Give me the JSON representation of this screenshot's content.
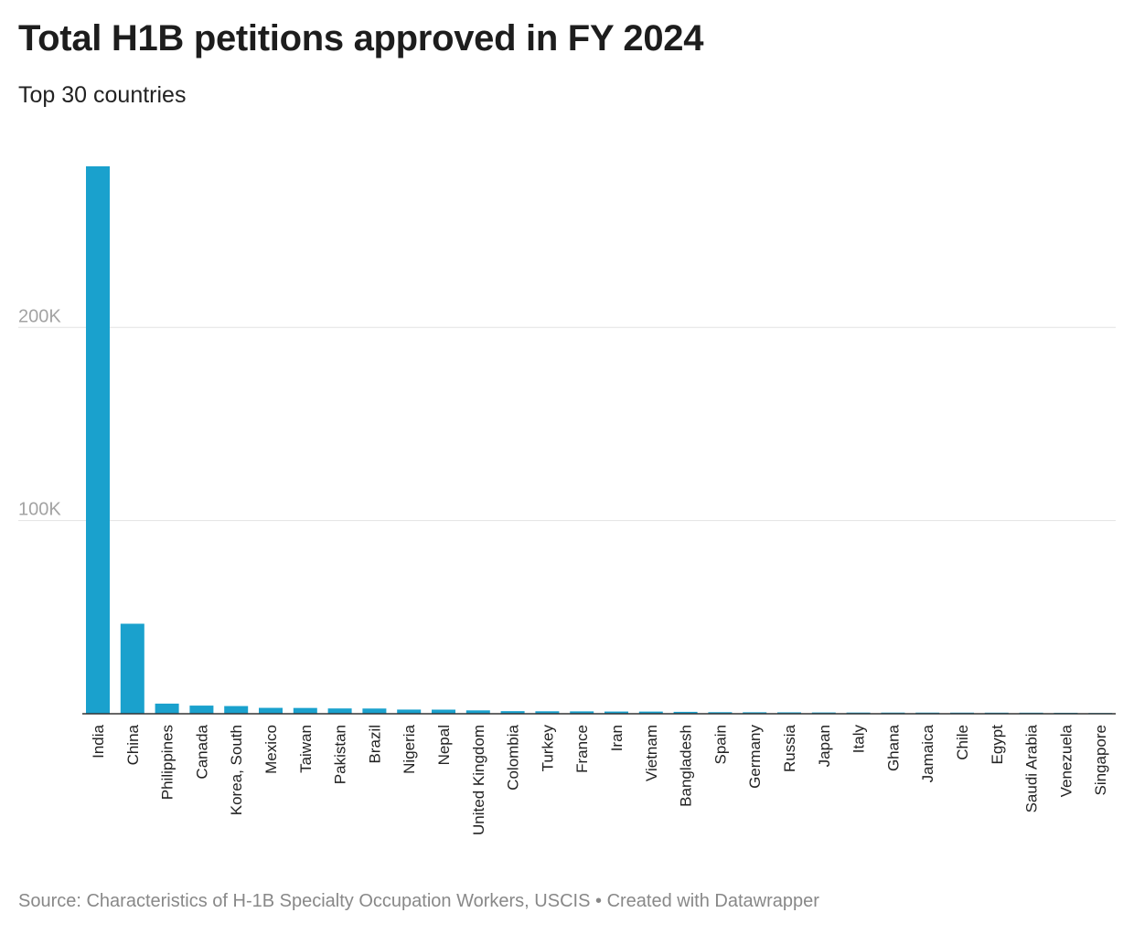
{
  "title": "Total H1B petitions approved in FY 2024",
  "subtitle": "Top 30 countries",
  "footer": {
    "source": "Source: Characteristics of H-1B Specialty Occupation Workers, USCIS",
    "separator": "•",
    "credit": "Created with Datawrapper"
  },
  "colors": {
    "bar": "#1aa1cd",
    "grid": "#e3e3e3",
    "baseline": "#333333"
  },
  "chart_data": {
    "type": "bar",
    "categories": [
      "India",
      "China",
      "Philippines",
      "Canada",
      "Korea, South",
      "Mexico",
      "Taiwan",
      "Pakistan",
      "Brazil",
      "Nigeria",
      "Nepal",
      "United Kingdom",
      "Colombia",
      "Turkey",
      "France",
      "Iran",
      "Vietnam",
      "Bangladesh",
      "Spain",
      "Germany",
      "Russia",
      "Japan",
      "Italy",
      "Ghana",
      "Jamaica",
      "Chile",
      "Egypt",
      "Saudi Arabia",
      "Venezuela",
      "Singapore"
    ],
    "values": [
      283397,
      46600,
      5248,
      4222,
      3983,
      3054,
      3001,
      2744,
      2705,
      2163,
      2129,
      1749,
      1350,
      1282,
      1238,
      1148,
      1124,
      987,
      812,
      770,
      729,
      662,
      617,
      601,
      592,
      576,
      557,
      549,
      497,
      396
    ],
    "ylim": [
      0,
      283397
    ],
    "yticks": [
      100000,
      200000
    ],
    "ytick_labels": [
      "100K",
      "200K"
    ],
    "grid": true,
    "legend": "none"
  }
}
